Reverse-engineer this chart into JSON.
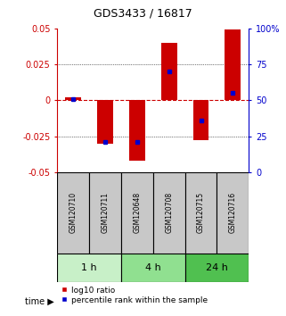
{
  "title": "GDS3433 / 16817",
  "samples": [
    "GSM120710",
    "GSM120711",
    "GSM120648",
    "GSM120708",
    "GSM120715",
    "GSM120716"
  ],
  "log10_ratio": [
    0.002,
    -0.03,
    -0.042,
    0.04,
    -0.028,
    0.049
  ],
  "percentile_rank": [
    51,
    21,
    21,
    70,
    36,
    55
  ],
  "groups": [
    {
      "label": "1 h",
      "indices": [
        0,
        1
      ],
      "color": "#c8f0c8"
    },
    {
      "label": "4 h",
      "indices": [
        2,
        3
      ],
      "color": "#90e090"
    },
    {
      "label": "24 h",
      "indices": [
        4,
        5
      ],
      "color": "#50c050"
    }
  ],
  "bar_color": "#cc0000",
  "dot_color": "#0000cc",
  "bar_width": 0.5,
  "ylim_left": [
    -0.05,
    0.05
  ],
  "ylim_right": [
    0,
    100
  ],
  "yticks_left": [
    -0.05,
    -0.025,
    0,
    0.025,
    0.05
  ],
  "yticks_right": [
    0,
    25,
    50,
    75,
    100
  ],
  "ytick_labels_left": [
    "-0.05",
    "-0.025",
    "0",
    "0.025",
    "0.05"
  ],
  "ytick_labels_right": [
    "0",
    "25",
    "50",
    "75",
    "100%"
  ],
  "hline_color": "#cc0000",
  "grid_color": "#000000",
  "background_color": "#ffffff",
  "plot_bg": "#ffffff",
  "label_log10": "log10 ratio",
  "label_pct": "percentile rank within the sample",
  "time_label": "time",
  "left_axis_color": "#cc0000",
  "right_axis_color": "#0000cc",
  "sample_bg": "#c8c8c8",
  "title_fontsize": 9,
  "tick_fontsize": 7,
  "sample_fontsize": 5.5,
  "group_fontsize": 8,
  "legend_fontsize": 6.5,
  "time_fontsize": 7
}
